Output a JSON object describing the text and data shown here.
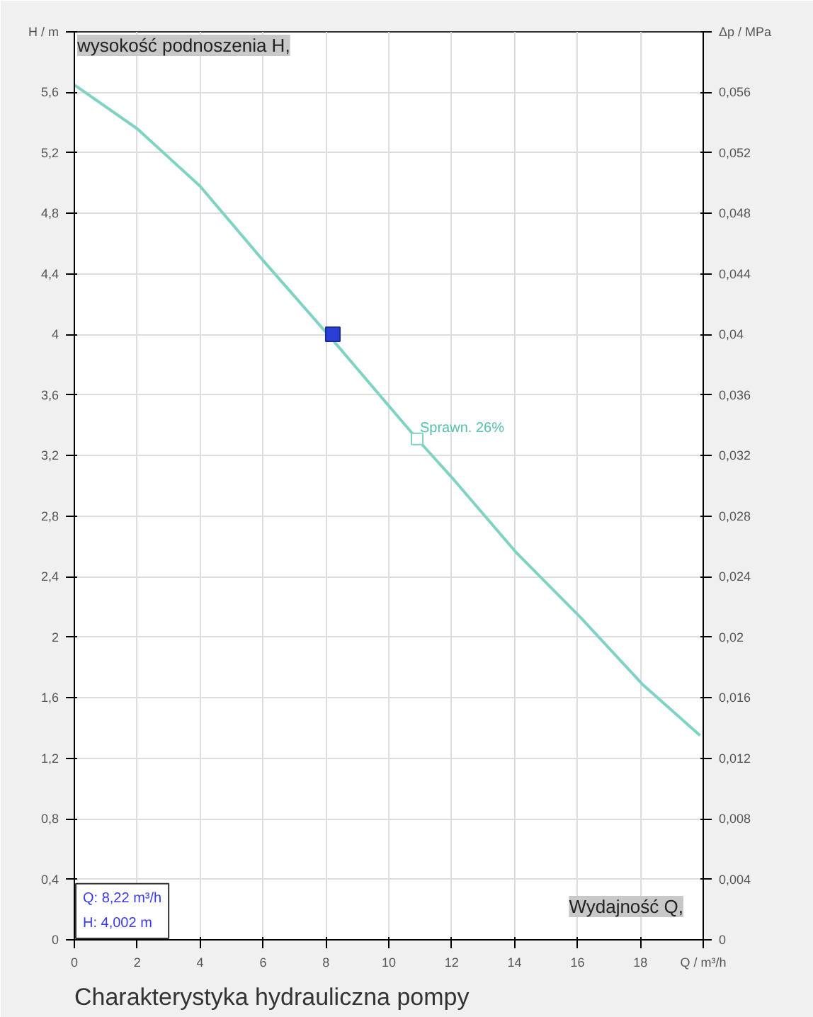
{
  "chart_data": {
    "type": "line",
    "title": "Charakterystyka hydrauliczna pompy",
    "xlabel": "Wydajność Q,",
    "ylabel": "wysokość podnoszenia H,",
    "xlim": [
      0,
      20
    ],
    "xticks": [
      0,
      2,
      4,
      6,
      8,
      10,
      12,
      14,
      16,
      18,
      {
        "value": 20,
        "label": "Q / m³/h"
      }
    ],
    "ylim": [
      0,
      6
    ],
    "yticks": [
      0,
      {
        "value": 0.4,
        "label": "0,4"
      },
      {
        "value": 0.8,
        "label": "0,8"
      },
      {
        "value": 1.2,
        "label": "1,2"
      },
      {
        "value": 1.6,
        "label": "1,6"
      },
      2,
      {
        "value": 2.4,
        "label": "2,4"
      },
      {
        "value": 2.8,
        "label": "2,8"
      },
      {
        "value": 3.2,
        "label": "3,2"
      },
      {
        "value": 3.6,
        "label": "3,6"
      },
      4,
      {
        "value": 4.4,
        "label": "4,4"
      },
      {
        "value": 4.8,
        "label": "4,8"
      },
      {
        "value": 5.2,
        "label": "5,2"
      },
      {
        "value": 5.6,
        "label": "5,6"
      },
      {
        "value": 6,
        "label": "H / m"
      }
    ],
    "y2lim": [
      0,
      0.06
    ],
    "y2ticks": [
      0,
      {
        "value": 0.004,
        "label": "0,004"
      },
      {
        "value": 0.008,
        "label": "0,008"
      },
      {
        "value": 0.012,
        "label": "0,012"
      },
      {
        "value": 0.016,
        "label": "0,016"
      },
      {
        "value": 0.02,
        "label": "0,02"
      },
      {
        "value": 0.024,
        "label": "0,024"
      },
      {
        "value": 0.028,
        "label": "0,028"
      },
      {
        "value": 0.032,
        "label": "0,032"
      },
      {
        "value": 0.036,
        "label": "0,036"
      },
      {
        "value": 0.04,
        "label": "0,04"
      },
      {
        "value": 0.044,
        "label": "0,044"
      },
      {
        "value": 0.048,
        "label": "0,048"
      },
      {
        "value": 0.052,
        "label": "0,052"
      },
      {
        "value": 0.056,
        "label": "0,056"
      },
      {
        "value": 0.06,
        "label": "Δp / MPa"
      }
    ],
    "grid": true,
    "series": [
      {
        "color": "#7fd3c3",
        "x": [
          0,
          2,
          4,
          6,
          8.15,
          10.2,
          10.9,
          12.07,
          14.05,
          16.1,
          18.06,
          19.9
        ],
        "values": [
          5.65,
          5.36,
          4.98,
          4.49,
          3.98,
          3.48,
          3.31,
          3.04,
          2.56,
          2.13,
          1.69,
          1.35
        ]
      },
      {
        "type": "scatter",
        "marker": "square",
        "color": "#2a3fd8",
        "x": [
          8.22
        ],
        "values": [
          4.002
        ]
      }
    ],
    "annotations": [
      {
        "text": "Sprawn. 26%",
        "x": 10.9,
        "y": 3.31
      },
      "Q: 8,22 m³/h",
      "H: 4,002 m"
    ]
  }
}
